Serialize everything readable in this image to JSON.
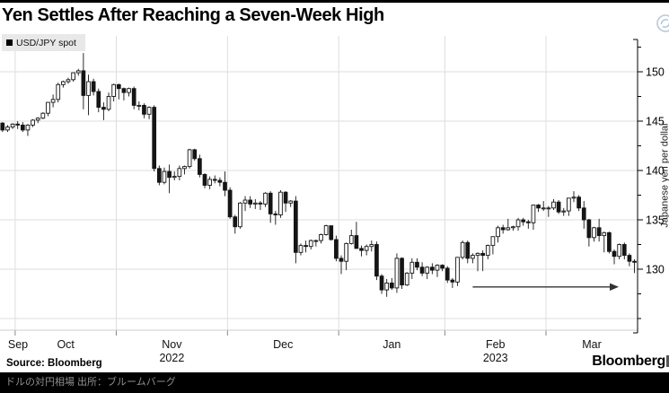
{
  "header": {
    "title": "Yen Settles After Reaching a Seven-Week High",
    "action_icon": "share-icon"
  },
  "legend": {
    "label": "USD/JPY spot",
    "marker_color": "#000000"
  },
  "colors": {
    "candle_down": "#151515",
    "candle_up": "#ffffff",
    "grid": "#dedede",
    "axis": "#000000",
    "arrow": "#333333",
    "icon_accent": "#b5c5d8"
  },
  "chart_data": {
    "type": "candlestick",
    "title": "Yen Settles After Reaching a Seven-Week High",
    "series_name": "USD/JPY spot",
    "ylabel_right": "Japanese yen per dollar",
    "ylim": [
      123,
      153
    ],
    "y_ticks": [
      130,
      135,
      140,
      145,
      150
    ],
    "y_minor_ticks": [
      125,
      127.5,
      132.5,
      137.5,
      142.5,
      147.5,
      152.5
    ],
    "grid_levels": [
      125,
      130,
      135,
      140,
      145,
      150
    ],
    "grid_on": true,
    "legend_position": "top-left",
    "x_labels": [
      {
        "month": "Sep"
      },
      {
        "month": "Oct"
      },
      {
        "month": "Nov",
        "year": "2022"
      },
      {
        "month": "Dec"
      },
      {
        "month": "Jan"
      },
      {
        "month": "Feb",
        "year": "2023"
      },
      {
        "month": "Mar"
      }
    ],
    "annotation_arrow": {
      "start_date": "2023-02-08",
      "end_date": "2023-03-20",
      "level": 128.2
    },
    "candles": [
      [
        "2022-09-28",
        144.8,
        144.9,
        143.9,
        144.1
      ],
      [
        "2022-09-29",
        144.1,
        144.6,
        143.9,
        144.4
      ],
      [
        "2022-09-30",
        144.4,
        144.8,
        144.2,
        144.7
      ],
      [
        "2022-10-03",
        144.7,
        145.0,
        144.2,
        144.6
      ],
      [
        "2022-10-04",
        144.6,
        144.9,
        143.9,
        144.1
      ],
      [
        "2022-10-05",
        144.1,
        144.7,
        143.5,
        144.6
      ],
      [
        "2022-10-06",
        144.6,
        145.2,
        144.4,
        145.1
      ],
      [
        "2022-10-07",
        145.1,
        145.4,
        144.8,
        145.3
      ],
      [
        "2022-10-11",
        145.3,
        145.9,
        145.2,
        145.8
      ],
      [
        "2022-10-12",
        145.8,
        146.9,
        145.5,
        146.9
      ],
      [
        "2022-10-13",
        146.9,
        147.7,
        146.4,
        147.2
      ],
      [
        "2022-10-14",
        147.2,
        148.9,
        146.9,
        148.7
      ],
      [
        "2022-10-17",
        148.7,
        149.1,
        148.4,
        149.0
      ],
      [
        "2022-10-18",
        149.0,
        149.4,
        148.8,
        149.2
      ],
      [
        "2022-10-19",
        149.2,
        149.9,
        149.0,
        149.9
      ],
      [
        "2022-10-20",
        149.9,
        150.3,
        149.6,
        150.1
      ],
      [
        "2022-10-21",
        150.1,
        151.9,
        146.2,
        147.6
      ],
      [
        "2022-10-24",
        147.6,
        149.7,
        145.6,
        149.0
      ],
      [
        "2022-10-25",
        149.0,
        149.3,
        147.6,
        148.0
      ],
      [
        "2022-10-26",
        148.0,
        148.3,
        145.9,
        146.4
      ],
      [
        "2022-10-27",
        146.4,
        146.9,
        145.1,
        146.2
      ],
      [
        "2022-10-28",
        146.2,
        147.9,
        146.0,
        147.5
      ],
      [
        "2022-10-31",
        147.5,
        148.8,
        147.0,
        148.7
      ],
      [
        "2022-11-01",
        148.7,
        148.8,
        147.2,
        148.3
      ],
      [
        "2022-11-02",
        148.3,
        148.4,
        147.1,
        147.9
      ],
      [
        "2022-11-03",
        147.9,
        148.4,
        147.5,
        148.3
      ],
      [
        "2022-11-04",
        148.3,
        148.5,
        146.2,
        146.6
      ],
      [
        "2022-11-07",
        146.6,
        147.0,
        146.1,
        146.6
      ],
      [
        "2022-11-08",
        146.6,
        146.8,
        145.3,
        145.7
      ],
      [
        "2022-11-09",
        145.7,
        146.5,
        145.2,
        146.4
      ],
      [
        "2022-11-10",
        146.4,
        146.6,
        139.9,
        140.2
      ],
      [
        "2022-11-11",
        140.2,
        140.5,
        138.5,
        138.8
      ],
      [
        "2022-11-14",
        138.8,
        140.3,
        138.6,
        139.9
      ],
      [
        "2022-11-15",
        139.9,
        140.6,
        137.7,
        139.3
      ],
      [
        "2022-11-16",
        139.3,
        139.9,
        139.0,
        139.4
      ],
      [
        "2022-11-17",
        139.4,
        140.5,
        139.0,
        140.2
      ],
      [
        "2022-11-18",
        140.2,
        140.5,
        139.6,
        140.4
      ],
      [
        "2022-11-21",
        140.4,
        142.2,
        140.2,
        142.1
      ],
      [
        "2022-11-22",
        142.1,
        142.2,
        141.0,
        141.2
      ],
      [
        "2022-11-23",
        141.2,
        141.6,
        139.3,
        139.6
      ],
      [
        "2022-11-24",
        139.6,
        139.7,
        138.2,
        138.5
      ],
      [
        "2022-11-25",
        138.5,
        139.4,
        138.1,
        139.1
      ],
      [
        "2022-11-28",
        139.1,
        139.5,
        138.7,
        139.0
      ],
      [
        "2022-11-29",
        139.0,
        139.3,
        138.4,
        138.8
      ],
      [
        "2022-11-30",
        138.8,
        139.9,
        137.4,
        138.0
      ],
      [
        "2022-12-01",
        138.0,
        138.3,
        135.1,
        135.3
      ],
      [
        "2022-12-02",
        135.3,
        135.5,
        133.6,
        134.3
      ],
      [
        "2022-12-05",
        134.3,
        136.8,
        134.1,
        136.7
      ],
      [
        "2022-12-06",
        136.7,
        137.4,
        135.9,
        137.0
      ],
      [
        "2022-12-07",
        137.0,
        137.4,
        136.2,
        136.6
      ],
      [
        "2022-12-08",
        136.6,
        137.1,
        136.1,
        136.7
      ],
      [
        "2022-12-09",
        136.7,
        136.9,
        136.0,
        136.6
      ],
      [
        "2022-12-12",
        136.6,
        137.8,
        136.3,
        137.7
      ],
      [
        "2022-12-13",
        137.7,
        137.9,
        134.7,
        135.6
      ],
      [
        "2022-12-14",
        135.6,
        135.9,
        134.5,
        135.5
      ],
      [
        "2022-12-15",
        135.5,
        138.0,
        135.2,
        137.8
      ],
      [
        "2022-12-16",
        137.8,
        137.9,
        135.8,
        136.7
      ],
      [
        "2022-12-19",
        136.7,
        137.0,
        136.3,
        136.9
      ],
      [
        "2022-12-20",
        136.9,
        137.4,
        130.6,
        131.7
      ],
      [
        "2022-12-21",
        131.7,
        132.6,
        131.4,
        132.4
      ],
      [
        "2022-12-22",
        132.4,
        132.9,
        131.7,
        132.3
      ],
      [
        "2022-12-23",
        132.3,
        133.0,
        132.0,
        132.9
      ],
      [
        "2022-12-26",
        132.9,
        133.0,
        132.3,
        132.9
      ],
      [
        "2022-12-27",
        132.9,
        133.6,
        132.6,
        133.5
      ],
      [
        "2022-12-28",
        133.5,
        134.5,
        133.4,
        134.4
      ],
      [
        "2022-12-29",
        134.4,
        134.4,
        132.9,
        133.0
      ],
      [
        "2022-12-30",
        133.0,
        133.4,
        130.8,
        131.1
      ],
      [
        "2023-01-03",
        131.1,
        131.4,
        129.5,
        130.8
      ],
      [
        "2023-01-04",
        130.8,
        132.7,
        129.9,
        132.6
      ],
      [
        "2023-01-05",
        132.6,
        134.0,
        132.5,
        133.4
      ],
      [
        "2023-01-06",
        133.4,
        134.8,
        132.1,
        132.1
      ],
      [
        "2023-01-09",
        132.1,
        132.4,
        131.3,
        131.9
      ],
      [
        "2023-01-10",
        131.9,
        132.5,
        131.4,
        132.3
      ],
      [
        "2023-01-11",
        132.3,
        132.9,
        131.8,
        132.5
      ],
      [
        "2023-01-12",
        132.5,
        132.8,
        128.9,
        129.3
      ],
      [
        "2023-01-13",
        129.3,
        129.5,
        127.5,
        127.9
      ],
      [
        "2023-01-16",
        127.9,
        129.0,
        127.2,
        128.6
      ],
      [
        "2023-01-17",
        128.6,
        129.1,
        127.9,
        128.1
      ],
      [
        "2023-01-18",
        128.1,
        131.6,
        127.6,
        131.1
      ],
      [
        "2023-01-19",
        131.1,
        131.2,
        128.0,
        128.4
      ],
      [
        "2023-01-20",
        128.4,
        129.7,
        128.3,
        129.6
      ],
      [
        "2023-01-23",
        129.6,
        131.1,
        129.0,
        130.7
      ],
      [
        "2023-01-24",
        130.7,
        131.1,
        129.9,
        130.2
      ],
      [
        "2023-01-25",
        130.2,
        130.7,
        129.3,
        129.6
      ],
      [
        "2023-01-26",
        129.6,
        130.3,
        129.0,
        130.2
      ],
      [
        "2023-01-27",
        130.2,
        130.6,
        129.5,
        129.9
      ],
      [
        "2023-01-30",
        129.9,
        130.5,
        129.2,
        130.4
      ],
      [
        "2023-01-31",
        130.4,
        130.5,
        129.8,
        130.1
      ],
      [
        "2023-02-01",
        130.1,
        130.3,
        128.6,
        128.9
      ],
      [
        "2023-02-02",
        128.9,
        129.1,
        128.1,
        128.7
      ],
      [
        "2023-02-03",
        128.7,
        131.2,
        128.3,
        131.2
      ],
      [
        "2023-02-06",
        131.2,
        132.9,
        131.0,
        132.7
      ],
      [
        "2023-02-07",
        132.7,
        132.9,
        130.6,
        131.1
      ],
      [
        "2023-02-08",
        131.1,
        131.6,
        130.6,
        131.4
      ],
      [
        "2023-02-09",
        131.4,
        131.7,
        129.8,
        131.6
      ],
      [
        "2023-02-10",
        131.6,
        131.9,
        129.8,
        131.4
      ],
      [
        "2023-02-13",
        131.4,
        132.5,
        131.0,
        132.4
      ],
      [
        "2023-02-14",
        132.4,
        133.3,
        131.5,
        133.3
      ],
      [
        "2023-02-15",
        133.3,
        134.4,
        132.7,
        134.2
      ],
      [
        "2023-02-16",
        134.2,
        134.5,
        133.6,
        134.0
      ],
      [
        "2023-02-17",
        134.0,
        135.1,
        133.9,
        134.2
      ],
      [
        "2023-02-20",
        134.2,
        134.4,
        133.9,
        134.3
      ],
      [
        "2023-02-21",
        134.3,
        135.2,
        133.9,
        135.0
      ],
      [
        "2023-02-22",
        135.0,
        135.2,
        134.4,
        134.8
      ],
      [
        "2023-02-23",
        134.8,
        135.0,
        134.1,
        134.7
      ],
      [
        "2023-02-24",
        134.7,
        136.5,
        134.0,
        136.5
      ],
      [
        "2023-02-27",
        136.5,
        136.6,
        135.8,
        136.2
      ],
      [
        "2023-02-28",
        136.2,
        136.9,
        135.9,
        136.2
      ],
      [
        "2023-03-01",
        136.2,
        136.4,
        135.3,
        136.2
      ],
      [
        "2023-03-02",
        136.2,
        137.1,
        136.0,
        136.8
      ],
      [
        "2023-03-03",
        136.8,
        137.0,
        135.6,
        135.8
      ],
      [
        "2023-03-06",
        135.8,
        136.2,
        135.4,
        135.9
      ],
      [
        "2023-03-07",
        135.9,
        137.2,
        135.4,
        137.2
      ],
      [
        "2023-03-08",
        137.2,
        137.9,
        136.8,
        137.3
      ],
      [
        "2023-03-09",
        137.3,
        137.5,
        135.9,
        136.2
      ],
      [
        "2023-03-10",
        136.2,
        136.9,
        134.1,
        135.0
      ],
      [
        "2023-03-13",
        135.0,
        135.1,
        132.3,
        133.2
      ],
      [
        "2023-03-14",
        133.2,
        134.3,
        132.8,
        134.2
      ],
      [
        "2023-03-15",
        134.2,
        135.1,
        132.8,
        133.4
      ],
      [
        "2023-03-16",
        133.4,
        133.8,
        131.7,
        133.7
      ],
      [
        "2023-03-17",
        133.7,
        133.8,
        131.6,
        131.8
      ],
      [
        "2023-03-20",
        131.8,
        132.0,
        130.5,
        131.3
      ],
      [
        "2023-03-21",
        131.3,
        132.6,
        131.0,
        132.5
      ],
      [
        "2023-03-22",
        132.5,
        132.7,
        131.0,
        131.4
      ],
      [
        "2023-03-23",
        131.4,
        131.6,
        130.3,
        130.8
      ],
      [
        "2023-03-24",
        130.8,
        131.0,
        129.6,
        130.7
      ]
    ]
  },
  "footer": {
    "source": "Source: Bloomberg",
    "brand": "Bloomberg",
    "caption_jp": "ドルの対円相場 出所：ブルームバーグ"
  }
}
